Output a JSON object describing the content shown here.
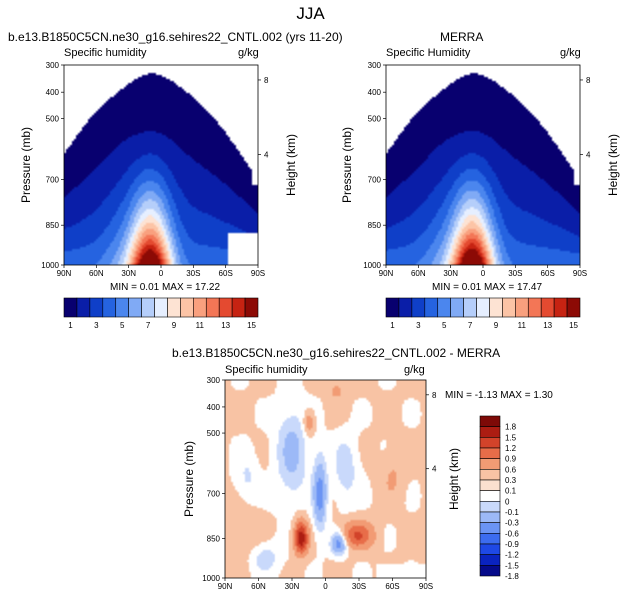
{
  "figure_title": "JJA",
  "colors": {
    "model_palette": [
      "#08006f",
      "#0a1ea8",
      "#0f3fc8",
      "#2563e0",
      "#4b86ee",
      "#80aaf5",
      "#b5cefa",
      "#e6efff",
      "#fde3d3",
      "#fcc4a6",
      "#f9a07e",
      "#f37656",
      "#e44a30",
      "#c62312",
      "#8c0a05"
    ],
    "diff_palette": [
      "#050a8a",
      "#0a23c0",
      "#1e48e6",
      "#3c6cf0",
      "#6b94f4",
      "#9cb9f7",
      "#c9d9fb",
      "#fbe1cf",
      "#f8c3a4",
      "#f29b74",
      "#e86d49",
      "#d2432a",
      "#ac1d12",
      "#7e0a07"
    ]
  },
  "chart_data": [
    {
      "id": "model",
      "type": "heatmap",
      "title": "b.e13.B1850C5CN.ne30_g16.sehires22_CNTL.002 (yrs 11-20)",
      "left_label": "Specific humidity",
      "right_label": "g/kg",
      "ylabel": "Pressure (mb)",
      "y2label": "Height (km)",
      "xticks": [
        "90N",
        "60N",
        "30N",
        "0",
        "30S",
        "60S",
        "90S"
      ],
      "yticks": [
        "300",
        "400",
        "500",
        "700",
        "850",
        "1000"
      ],
      "y2ticks": [
        "8",
        "4"
      ],
      "stats": "MIN =   0.01   MAX =   17.22",
      "min": 0.01,
      "max": 17.22,
      "colorbar_labels": [
        "1",
        "3",
        "5",
        "7",
        "9",
        "11",
        "13",
        "15"
      ],
      "colorbar_levels": [
        1,
        2,
        3,
        4,
        5,
        6,
        7,
        8,
        9,
        10,
        11,
        12,
        13,
        14,
        15
      ]
    },
    {
      "id": "merra",
      "type": "heatmap",
      "title": "MERRA",
      "left_label": "Specific Humidity",
      "right_label": "g/kg",
      "ylabel": "Pressure (mb)",
      "y2label": "Height (km)",
      "xticks": [
        "90N",
        "60N",
        "30N",
        "0",
        "30S",
        "60S",
        "90S"
      ],
      "yticks": [
        "300",
        "400",
        "500",
        "700",
        "850",
        "1000"
      ],
      "y2ticks": [
        "8",
        "4"
      ],
      "stats": "MIN =   0.01   MAX =   17.47",
      "min": 0.01,
      "max": 17.47,
      "colorbar_labels": [
        "1",
        "3",
        "5",
        "7",
        "9",
        "11",
        "13",
        "15"
      ],
      "colorbar_levels": [
        1,
        2,
        3,
        4,
        5,
        6,
        7,
        8,
        9,
        10,
        11,
        12,
        13,
        14,
        15
      ]
    },
    {
      "id": "diff",
      "type": "heatmap",
      "title": "b.e13.B1850C5CN.ne30_g16.sehires22_CNTL.002 - MERRA",
      "left_label": "Specific humidity",
      "right_label": "g/kg",
      "ylabel": "Pressure (mb)",
      "y2label": "Height (km)",
      "xticks": [
        "90N",
        "60N",
        "30N",
        "0",
        "30S",
        "60S",
        "90S"
      ],
      "yticks": [
        "300",
        "400",
        "500",
        "700",
        "850",
        "1000"
      ],
      "y2ticks": [
        "8",
        "4"
      ],
      "stats": "MIN =  -1.13   MAX =   1.30",
      "min": -1.13,
      "max": 1.3,
      "colorbar_labels": [
        "1.8",
        "1.5",
        "1.2",
        "0.9",
        "0.6",
        "0.3",
        "0.1",
        "0",
        "-0.1",
        "-0.3",
        "-0.6",
        "-0.9",
        "-1.2",
        "-1.5",
        "-1.8"
      ],
      "colorbar_levels": [
        -1.8,
        -1.5,
        -1.2,
        -0.9,
        -0.6,
        -0.3,
        -0.1,
        0,
        0.1,
        0.3,
        0.6,
        0.9,
        1.2,
        1.5,
        1.8
      ]
    }
  ]
}
